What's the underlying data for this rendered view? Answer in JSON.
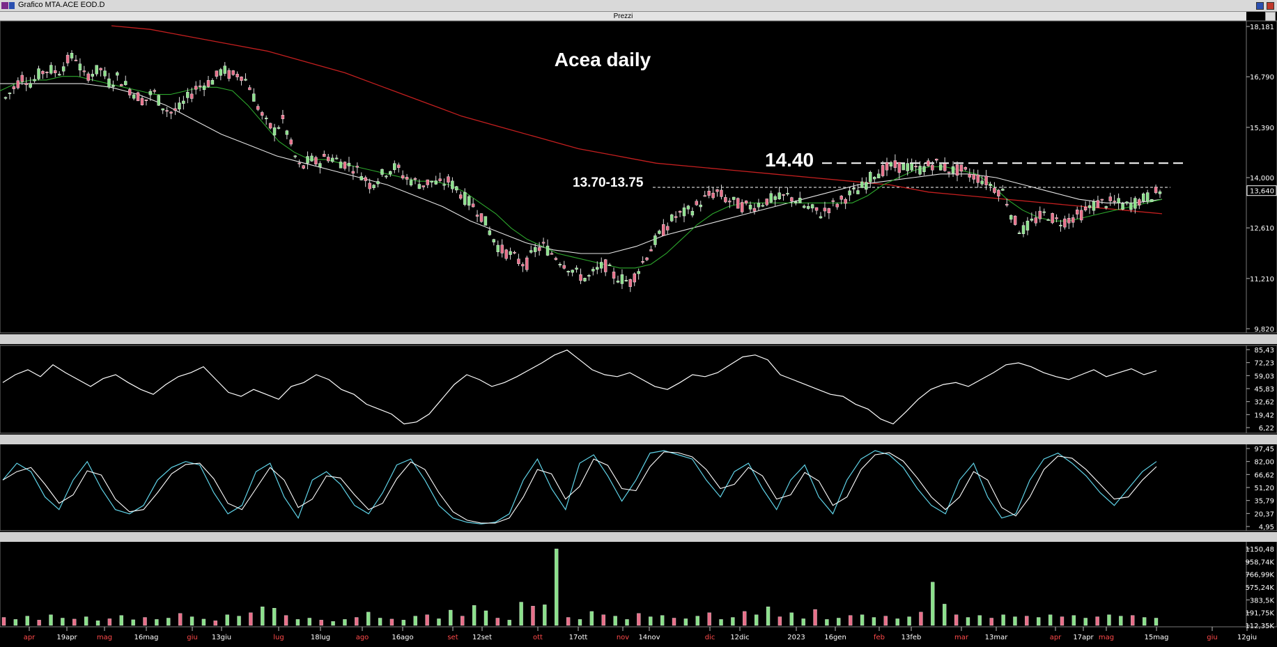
{
  "window": {
    "title": "Grafico MTA.ACE EOD.D"
  },
  "panel_title": "Prezzi",
  "chart_data": [
    {
      "type": "candlestick",
      "title": "Acea daily",
      "annotations": [
        {
          "text": "14.40",
          "level": 14.4
        },
        {
          "text": "13.70-13.75",
          "level": 13.73
        }
      ],
      "y_ticks": [
        "18,181",
        "16,790",
        "15,390",
        "14,000",
        "12,610",
        "11,210",
        "9,820"
      ],
      "ylim": [
        9.82,
        18.181
      ],
      "last_value": "13,640",
      "x_labels": [
        {
          "t": "apr",
          "c": "red"
        },
        {
          "t": "19apr",
          "c": "white"
        },
        {
          "t": "mag",
          "c": "red"
        },
        {
          "t": "16mag",
          "c": "white"
        },
        {
          "t": "giu",
          "c": "red"
        },
        {
          "t": "13giu",
          "c": "white"
        },
        {
          "t": "lug",
          "c": "red"
        },
        {
          "t": "18lug",
          "c": "white"
        },
        {
          "t": "ago",
          "c": "red"
        },
        {
          "t": "16ago",
          "c": "white"
        },
        {
          "t": "set",
          "c": "red"
        },
        {
          "t": "12set",
          "c": "white"
        },
        {
          "t": "ott",
          "c": "red"
        },
        {
          "t": "17ott",
          "c": "white"
        },
        {
          "t": "nov",
          "c": "red"
        },
        {
          "t": "14nov",
          "c": "white"
        },
        {
          "t": "dic",
          "c": "red"
        },
        {
          "t": "12dic",
          "c": "white"
        },
        {
          "t": "2023",
          "c": "white"
        },
        {
          "t": "16gen",
          "c": "white"
        },
        {
          "t": "feb",
          "c": "red"
        },
        {
          "t": "13feb",
          "c": "white"
        },
        {
          "t": "mar",
          "c": "red"
        },
        {
          "t": "13mar",
          "c": "white"
        },
        {
          "t": "apr",
          "c": "red"
        },
        {
          "t": "17apr",
          "c": "white"
        },
        {
          "t": "mag",
          "c": "red"
        },
        {
          "t": "15mag",
          "c": "white"
        },
        {
          "t": "giu",
          "c": "red"
        },
        {
          "t": "12giu",
          "c": "white"
        }
      ],
      "close_path": [
        16.2,
        16.5,
        16.8,
        16.6,
        16.9,
        17.0,
        16.9,
        17.2,
        17.4,
        16.8,
        16.9,
        17.0,
        16.6,
        16.8,
        16.5,
        16.3,
        16.1,
        16.4,
        16.0,
        15.8,
        15.9,
        16.2,
        16.5,
        16.6,
        16.7,
        17.0,
        16.8,
        16.9,
        16.6,
        16.0,
        15.5,
        15.3,
        15.6,
        14.8,
        14.2,
        14.5,
        14.4,
        14.6,
        14.5,
        14.4,
        14.3,
        14.1,
        13.8,
        14.0,
        14.2,
        14.3,
        14.0,
        13.9,
        13.8,
        13.9,
        13.8,
        13.9,
        13.7,
        13.4,
        13.2,
        12.9,
        12.4,
        12.0,
        11.9,
        11.7,
        11.6,
        12.0,
        12.1,
        11.9,
        11.7,
        11.5,
        11.3,
        11.2,
        11.4,
        11.6,
        11.3,
        11.2,
        11.1,
        11.5,
        11.9,
        12.3,
        12.6,
        12.9,
        13.0,
        13.1,
        13.3,
        13.5,
        13.6,
        13.4,
        13.3,
        13.2,
        13.2,
        13.3,
        13.4,
        13.4,
        13.5,
        13.4,
        13.2,
        13.1,
        13.0,
        13.2,
        13.3,
        13.5,
        13.6,
        13.8,
        14.1,
        14.2,
        14.3,
        14.3,
        14.3,
        14.2,
        14.3,
        14.4,
        14.3,
        14.2,
        14.2,
        14.1,
        14.0,
        13.9,
        13.7,
        13.6,
        12.9,
        12.5,
        12.7,
        12.9,
        13.0,
        12.8,
        12.8,
        12.9,
        13.0,
        13.2,
        13.3,
        13.3,
        13.3,
        13.2,
        13.3,
        13.4,
        13.5,
        13.64
      ],
      "ma20_path": [
        16.4,
        16.6,
        16.7,
        16.7,
        16.8,
        16.8,
        16.7,
        16.6,
        16.5,
        16.4,
        16.3,
        16.3,
        16.4,
        16.5,
        16.5,
        16.4,
        16.0,
        15.5,
        15.0,
        14.7,
        14.5,
        14.5,
        14.4,
        14.3,
        14.2,
        14.1,
        14.0,
        13.9,
        13.9,
        13.8,
        13.6,
        13.3,
        13.0,
        12.6,
        12.3,
        12.1,
        11.9,
        11.8,
        11.7,
        11.6,
        11.5,
        11.5,
        11.6,
        11.9,
        12.3,
        12.7,
        13.0,
        13.2,
        13.3,
        13.3,
        13.3,
        13.3,
        13.3,
        13.3,
        13.3,
        13.3,
        13.5,
        13.8,
        14.0,
        14.2,
        14.3,
        14.3,
        14.2,
        14.1,
        13.8,
        13.4,
        13.1,
        12.9,
        12.8,
        12.8,
        12.9,
        13.0,
        13.1,
        13.2,
        13.3,
        13.4
      ],
      "ma50_path": [
        16.6,
        16.6,
        16.6,
        16.6,
        16.5,
        16.3,
        16.0,
        15.6,
        15.2,
        14.9,
        14.6,
        14.4,
        14.2,
        14.0,
        13.8,
        13.5,
        13.2,
        12.8,
        12.5,
        12.2,
        12.0,
        11.9,
        11.9,
        12.1,
        12.4,
        12.6,
        12.8,
        13.0,
        13.2,
        13.4,
        13.6,
        13.8,
        13.9,
        14.0,
        14.1,
        14.1,
        14.0,
        13.8,
        13.6,
        13.4,
        13.3,
        13.3,
        13.4
      ],
      "ma200_path": [
        18.2,
        18.1,
        17.9,
        17.7,
        17.5,
        17.2,
        16.9,
        16.5,
        16.1,
        15.7,
        15.4,
        15.1,
        14.8,
        14.6,
        14.4,
        14.3,
        14.2,
        14.1,
        14.0,
        13.9,
        13.8,
        13.6,
        13.5,
        13.4,
        13.3,
        13.2,
        13.1,
        13.0
      ]
    },
    {
      "type": "line",
      "name": "RSI",
      "y_ticks": [
        "85,43",
        "72,23",
        "59,03",
        "45,83",
        "32,62",
        "19,42",
        "6,22"
      ],
      "ylim": [
        6.22,
        85.43
      ],
      "values": [
        52,
        60,
        65,
        58,
        70,
        62,
        55,
        48,
        56,
        60,
        52,
        45,
        40,
        50,
        58,
        62,
        68,
        55,
        42,
        38,
        45,
        40,
        35,
        48,
        52,
        60,
        55,
        45,
        40,
        30,
        25,
        20,
        10,
        12,
        20,
        35,
        50,
        60,
        55,
        48,
        52,
        58,
        65,
        72,
        80,
        85,
        75,
        65,
        60,
        58,
        62,
        55,
        48,
        45,
        52,
        60,
        58,
        62,
        70,
        78,
        80,
        75,
        60,
        55,
        50,
        45,
        40,
        38,
        30,
        25,
        15,
        10,
        22,
        35,
        45,
        50,
        52,
        48,
        55,
        62,
        70,
        72,
        68,
        62,
        58,
        55,
        60,
        65,
        58,
        62,
        66,
        60,
        64
      ]
    },
    {
      "type": "line",
      "name": "Stochastic",
      "y_ticks": [
        "97,45",
        "82,00",
        "66,62",
        "51,20",
        "35,79",
        "20,37",
        "4,95"
      ],
      "ylim": [
        4.95,
        97.45
      ],
      "values": [
        60,
        80,
        70,
        40,
        25,
        60,
        82,
        50,
        25,
        20,
        30,
        60,
        75,
        82,
        78,
        45,
        20,
        30,
        70,
        80,
        40,
        15,
        60,
        70,
        55,
        30,
        20,
        45,
        78,
        85,
        60,
        30,
        15,
        10,
        8,
        10,
        20,
        60,
        85,
        50,
        25,
        80,
        90,
        65,
        35,
        60,
        92,
        95,
        90,
        85,
        60,
        40,
        70,
        80,
        50,
        25,
        60,
        78,
        40,
        20,
        60,
        85,
        95,
        90,
        75,
        50,
        30,
        20,
        60,
        80,
        40,
        15,
        20,
        60,
        85,
        92,
        80,
        65,
        45,
        30,
        50,
        70,
        82
      ]
    },
    {
      "type": "bar",
      "name": "Volume",
      "y_ticks": [
        "1150,48",
        "958,74K",
        "766,99K",
        "575,24K",
        "383,5K",
        "191,75K",
        "112,35K"
      ],
      "ylim": [
        0,
        1150.48
      ],
      "values": [
        120,
        90,
        140,
        80,
        160,
        110,
        95,
        130,
        70,
        100,
        150,
        85,
        120,
        90,
        110,
        180,
        130,
        95,
        70,
        160,
        140,
        190,
        280,
        260,
        150,
        90,
        110,
        80,
        60,
        90,
        120,
        200,
        110,
        95,
        80,
        140,
        160,
        100,
        230,
        140,
        300,
        220,
        110,
        80,
        350,
        290,
        310,
        1150,
        120,
        90,
        210,
        160,
        140,
        90,
        180,
        130,
        150,
        110,
        100,
        140,
        190,
        90,
        120,
        210,
        160,
        280,
        130,
        190,
        100,
        240,
        90,
        110,
        150,
        160,
        120,
        140,
        100,
        130,
        200,
        650,
        320,
        160,
        120,
        150,
        110,
        160,
        130,
        140,
        120,
        160,
        130,
        150,
        110,
        130,
        160,
        140,
        150,
        120,
        110
      ]
    }
  ]
}
